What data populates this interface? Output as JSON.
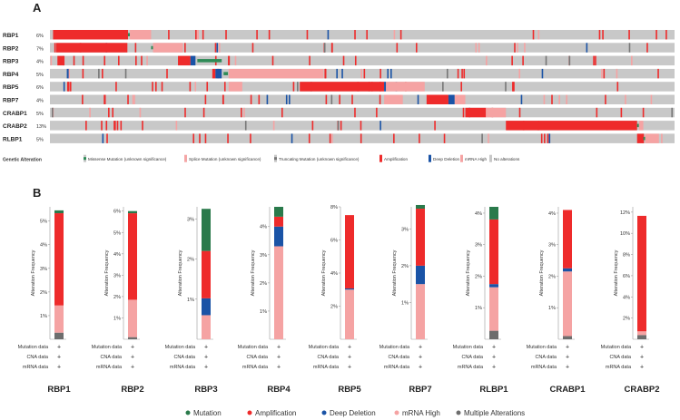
{
  "panel_a": {
    "label": "A",
    "legend_title": "Genetic Alteration",
    "legend": [
      {
        "key": "missense",
        "label": "Missense Mutation (unknown significance)",
        "color": "#2e8b57"
      },
      {
        "key": "splice",
        "label": "Splice Mutation (unknown significance)",
        "color": "#f4a6a6"
      },
      {
        "key": "truncating",
        "label": "Truncating Mutation (unknown significance)",
        "color": "#777777"
      },
      {
        "key": "amp",
        "label": "Amplification",
        "color": "#ee2b2b"
      },
      {
        "key": "deepdel",
        "label": "Deep Deletion",
        "color": "#1a53a6"
      },
      {
        "key": "mrnahigh",
        "label": "mRNA High",
        "color": "#f5a3a3"
      },
      {
        "key": "none",
        "label": "No alterations",
        "color": "#c8c8c8"
      }
    ]
  },
  "panel_b": {
    "label": "B",
    "row_labels": [
      "Mutation data",
      "CNA data",
      "mRNA data"
    ],
    "row_marker": "+",
    "legend": [
      {
        "label": "Mutation",
        "color": "#2a7a4b"
      },
      {
        "label": "Amplification",
        "color": "#ee2b2b"
      },
      {
        "label": "Deep Deletion",
        "color": "#1a53a6"
      },
      {
        "label": "mRNA High",
        "color": "#f5a3a3"
      },
      {
        "label": "Multiple Alterations",
        "color": "#6d6d6d"
      }
    ]
  },
  "chart_data": [
    {
      "type": "heatmap",
      "title": "",
      "genes": [
        "RBP1",
        "RBP2",
        "RBP3",
        "RBP4",
        "RBP5",
        "RBP7",
        "CRABP1",
        "CRABP2",
        "RLBP1"
      ],
      "percentages": [
        "6%",
        "7%",
        "4%",
        "5%",
        "6%",
        "4%",
        "5%",
        "13%",
        "5%"
      ],
      "tracks": [
        {
          "gene": "RBP1",
          "blocks": [
            {
              "type": "amp",
              "start": 0.005,
              "end": 0.125
            },
            {
              "type": "missense",
              "start": 0.125,
              "end": 0.128
            },
            {
              "type": "mrnahigh",
              "start": 0.128,
              "end": 0.162
            }
          ]
        },
        {
          "gene": "RBP2",
          "blocks": [
            {
              "type": "amp",
              "start": 0.01,
              "end": 0.124
            },
            {
              "type": "missense",
              "start": 0.162,
              "end": 0.165
            },
            {
              "type": "mrnahigh",
              "start": 0.165,
              "end": 0.213
            }
          ]
        },
        {
          "gene": "RBP3",
          "blocks": [
            {
              "type": "amp",
              "start": 0.012,
              "end": 0.022
            },
            {
              "type": "amp",
              "start": 0.205,
              "end": 0.225
            },
            {
              "type": "deepdel",
              "start": 0.225,
              "end": 0.233
            },
            {
              "type": "missense",
              "start": 0.236,
              "end": 0.275
            },
            {
              "type": "amp",
              "start": 0.285,
              "end": 0.288
            }
          ]
        },
        {
          "gene": "RBP4",
          "blocks": [
            {
              "type": "deepdel",
              "start": 0.027,
              "end": 0.03
            },
            {
              "type": "amp",
              "start": 0.26,
              "end": 0.265
            },
            {
              "type": "deepdel",
              "start": 0.265,
              "end": 0.275
            },
            {
              "type": "missense",
              "start": 0.278,
              "end": 0.285
            },
            {
              "type": "mrnahigh",
              "start": 0.286,
              "end": 0.438
            }
          ]
        },
        {
          "gene": "RBP5",
          "blocks": [
            {
              "type": "mrnahigh",
              "start": 0.286,
              "end": 0.308
            },
            {
              "type": "amp",
              "start": 0.4,
              "end": 0.535
            },
            {
              "type": "deepdel",
              "start": 0.535,
              "end": 0.538
            },
            {
              "type": "mrnahigh",
              "start": 0.538,
              "end": 0.6
            }
          ]
        },
        {
          "gene": "RBP7",
          "blocks": [
            {
              "type": "mrnahigh",
              "start": 0.535,
              "end": 0.565
            },
            {
              "type": "amp",
              "start": 0.603,
              "end": 0.638
            },
            {
              "type": "deepdel",
              "start": 0.638,
              "end": 0.648
            },
            {
              "type": "mrnahigh",
              "start": 0.648,
              "end": 0.665
            }
          ]
        },
        {
          "gene": "CRABP1",
          "blocks": [
            {
              "type": "amp",
              "start": 0.665,
              "end": 0.698
            },
            {
              "type": "mrnahigh",
              "start": 0.698,
              "end": 0.73
            }
          ]
        },
        {
          "gene": "CRABP2",
          "blocks": [
            {
              "type": "amp",
              "start": 0.73,
              "end": 0.94
            },
            {
              "type": "missense",
              "start": 0.94,
              "end": 0.943
            },
            {
              "type": "mrnahigh",
              "start": 0.943,
              "end": 0.95
            }
          ]
        },
        {
          "gene": "RLBP1",
          "blocks": [
            {
              "type": "amp",
              "start": 0.94,
              "end": 0.95
            },
            {
              "type": "missense",
              "start": 0.95,
              "end": 0.953
            },
            {
              "type": "mrnahigh",
              "start": 0.953,
              "end": 0.975
            }
          ]
        }
      ]
    },
    {
      "type": "bar",
      "ylabel": "Alteration Frequency",
      "categories": [
        "RBP1",
        "RBP2",
        "RBP3",
        "RBP4",
        "RBP5",
        "RBP7",
        "RLBP1",
        "CRABP1",
        "CRABP2"
      ],
      "ymax": [
        5.6,
        6.2,
        3.3,
        4.7,
        8.0,
        3.6,
        4.2,
        4.2,
        12.5
      ],
      "ticks": [
        [
          1,
          2,
          3,
          4,
          5
        ],
        [
          1,
          2,
          3,
          4,
          5,
          6
        ],
        [
          1,
          2,
          3
        ],
        [
          1,
          2,
          3,
          4
        ],
        [
          2,
          4,
          6,
          8
        ],
        [
          1,
          2,
          3
        ],
        [
          1,
          2,
          3,
          4
        ],
        [
          1,
          2,
          3,
          4
        ],
        [
          2,
          4,
          6,
          8,
          10,
          12
        ]
      ],
      "series": [
        {
          "name": "Multiple Alterations",
          "values": [
            0.28,
            0.1,
            0,
            0,
            0,
            0,
            0.27,
            0.1,
            0.4
          ]
        },
        {
          "name": "mRNA High",
          "values": [
            1.15,
            1.75,
            0.6,
            3.3,
            3.0,
            1.5,
            1.38,
            2.05,
            0.35
          ]
        },
        {
          "name": "Deep Deletion",
          "values": [
            0,
            0,
            0.42,
            0.7,
            0.07,
            0.5,
            0.1,
            0.1,
            0
          ]
        },
        {
          "name": "Amplification",
          "values": [
            3.9,
            4.05,
            1.18,
            0.35,
            4.43,
            1.55,
            2.05,
            1.85,
            10.9
          ]
        },
        {
          "name": "Mutation",
          "values": [
            0.12,
            0.1,
            1.05,
            0.35,
            0,
            0.1,
            0.4,
            0,
            0
          ]
        }
      ]
    }
  ]
}
